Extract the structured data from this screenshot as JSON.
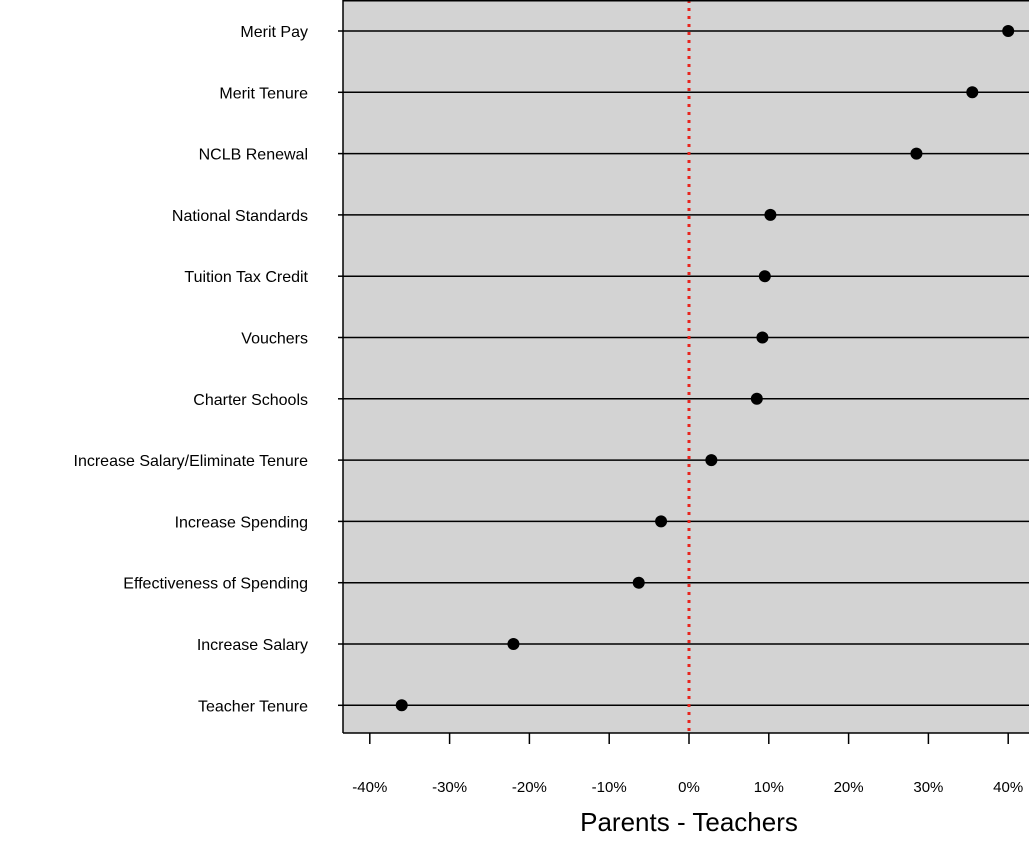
{
  "chart_data": {
    "type": "scatter",
    "title": "",
    "xlabel": "Parents - Teachers",
    "ylabel": "",
    "xlim": [
      -43,
      42
    ],
    "categories": [
      "Merit Pay",
      "Merit Tenure",
      "NCLB Renewal",
      "National Standards",
      "Tuition Tax Credit",
      "Vouchers",
      "Charter Schools",
      "Increase Salary/Eliminate Tenure",
      "Increase Spending",
      "Effectiveness of Spending",
      "Increase Salary",
      "Teacher Tenure"
    ],
    "values": [
      40,
      35.5,
      28.5,
      10.2,
      9.5,
      9.2,
      8.5,
      2.8,
      -3.5,
      -6.3,
      -22,
      -36
    ],
    "x_ticks": [
      -40,
      -30,
      -20,
      -10,
      0,
      10,
      20,
      30,
      40
    ],
    "x_tick_labels": [
      "-40%",
      "-30%",
      "-20%",
      "-10%",
      "0%",
      "10%",
      "20%",
      "30%",
      "40%"
    ],
    "reference_line": {
      "value": 0,
      "color": "#e8231c",
      "style": "dotted"
    },
    "panel_color": "#d3d3d3",
    "point_color": "#000000",
    "grid": "horizontal"
  }
}
